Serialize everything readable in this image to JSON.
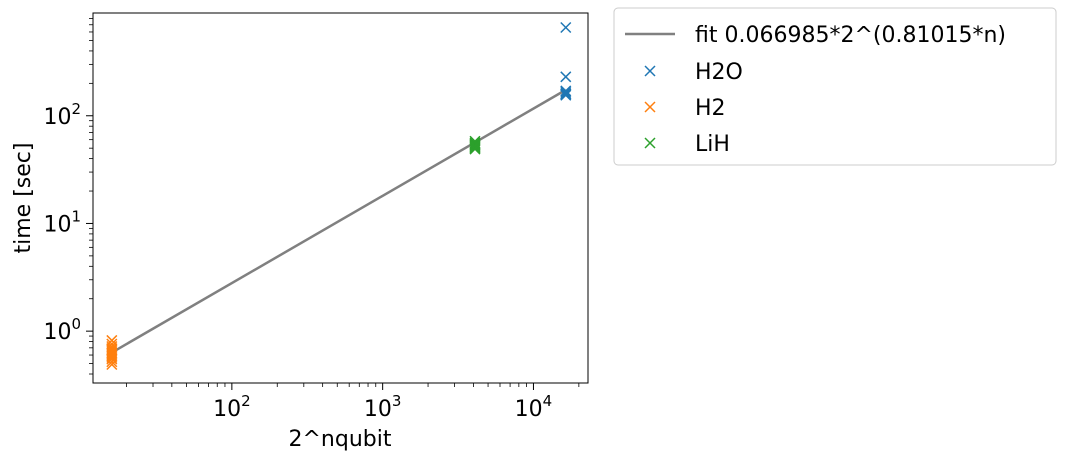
{
  "chart_data": {
    "type": "scatter",
    "xlabel": "2^nqubit",
    "ylabel": "time [sec]",
    "xscale": "log",
    "yscale": "log",
    "xlim": [
      12,
      23000
    ],
    "ylim": [
      0.33,
      900
    ],
    "grid": false,
    "legend_placement": "outside-top-right",
    "x_ticks": [
      {
        "value": 100,
        "base": "10",
        "exp": "2"
      },
      {
        "value": 1000,
        "base": "10",
        "exp": "3"
      },
      {
        "value": 10000,
        "base": "10",
        "exp": "4"
      }
    ],
    "y_ticks": [
      {
        "value": 1,
        "base": "10",
        "exp": "0"
      },
      {
        "value": 10,
        "base": "10",
        "exp": "1"
      },
      {
        "value": 100,
        "base": "10",
        "exp": "2"
      }
    ],
    "fit": {
      "name": "fit 0.066985*2^(0.81015*n)",
      "coef": 0.066985,
      "exponent": 0.81015,
      "x_range": [
        16,
        16384
      ],
      "color": "#808080"
    },
    "series": [
      {
        "name": "H2O",
        "color": "#1f77b4",
        "marker": "x",
        "points": [
          [
            16384,
            660
          ],
          [
            16384,
            230
          ],
          [
            16384,
            170
          ],
          [
            16384,
            165
          ],
          [
            16384,
            160
          ],
          [
            16384,
            158
          ],
          [
            16384,
            155
          ]
        ]
      },
      {
        "name": "H2",
        "color": "#ff7f0e",
        "marker": "x",
        "points": [
          [
            16,
            0.82
          ],
          [
            16,
            0.76
          ],
          [
            16,
            0.72
          ],
          [
            16,
            0.69
          ],
          [
            16,
            0.67
          ],
          [
            16,
            0.65
          ],
          [
            16,
            0.63
          ],
          [
            16,
            0.61
          ],
          [
            16,
            0.59
          ],
          [
            16,
            0.57
          ],
          [
            16,
            0.55
          ],
          [
            16,
            0.52
          ],
          [
            16,
            0.49
          ]
        ]
      },
      {
        "name": "LiH",
        "color": "#2ca02c",
        "marker": "x",
        "points": [
          [
            4096,
            58
          ],
          [
            4096,
            56
          ],
          [
            4096,
            55
          ],
          [
            4096,
            54
          ],
          [
            4096,
            53
          ],
          [
            4096,
            52
          ],
          [
            4096,
            51
          ],
          [
            4096,
            50
          ],
          [
            4096,
            49
          ]
        ]
      }
    ]
  }
}
